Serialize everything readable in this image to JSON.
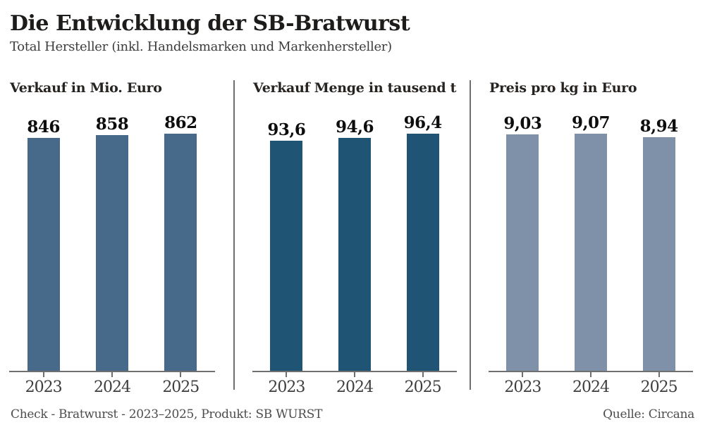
{
  "header": {
    "title": "Die Entwicklung der SB-Bratwurst",
    "subtitle": "Total Hersteller (inkl. Handelsmarken und Markenhersteller)"
  },
  "footer": {
    "note_left": "Check - Bratwurst - 2023–2025, Produkt: SB WURST",
    "source_right": "Quelle: Circana"
  },
  "colors": {
    "bar_sales_euro": "#47698a",
    "bar_sales_volume": "#1f5475",
    "bar_price": "#7e91a9",
    "divider_and_axis": "#6f6f6f",
    "background": "#ffffff"
  },
  "chart_data": [
    {
      "type": "bar",
      "title": "Verkauf in Mio. Euro",
      "categories": [
        "2023",
        "2024",
        "2025"
      ],
      "values": [
        846,
        858,
        862
      ],
      "value_labels": [
        "846",
        "858",
        "862"
      ],
      "bar_color": "#47698a",
      "ylim": [
        0,
        862
      ],
      "grid": false,
      "legend": "none"
    },
    {
      "type": "bar",
      "title": "Verkauf Menge in tausend t",
      "categories": [
        "2023",
        "2024",
        "2025"
      ],
      "values": [
        93.6,
        94.6,
        96.4
      ],
      "value_labels": [
        "93,6",
        "94,6",
        "96,4"
      ],
      "bar_color": "#1f5475",
      "ylim": [
        0,
        96.4
      ],
      "grid": false,
      "legend": "none"
    },
    {
      "type": "bar",
      "title": "Preis pro kg in Euro",
      "categories": [
        "2023",
        "2024",
        "2025"
      ],
      "values": [
        9.03,
        9.07,
        8.94
      ],
      "value_labels": [
        "9,03",
        "9,07",
        "8,94"
      ],
      "bar_color": "#7e91a9",
      "ylim": [
        0,
        9.07
      ],
      "grid": false,
      "legend": "none"
    }
  ]
}
